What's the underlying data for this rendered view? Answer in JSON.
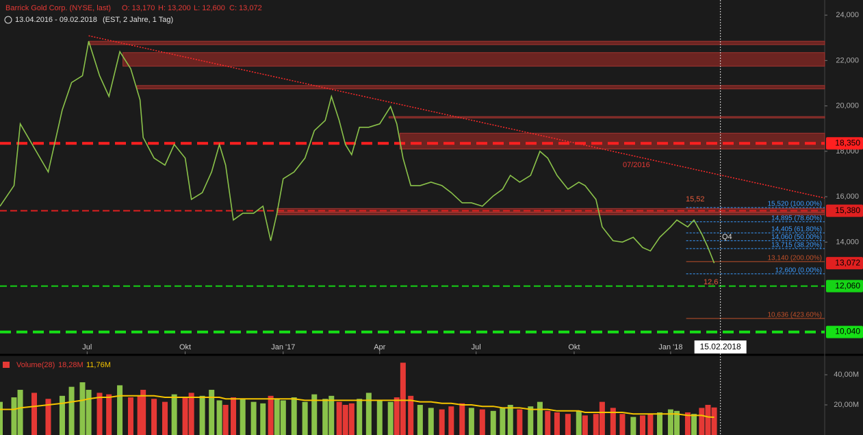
{
  "chart_data": {
    "type": "line",
    "title": "Barrick Gold Corp. (NYSE, last)",
    "ohlc": [
      {
        "value": 13170,
        "label": "O: 13,170"
      },
      {
        "value": 13200,
        "label": "H: 13,200"
      },
      {
        "value": 12600,
        "label": "L: 12,600"
      },
      {
        "value": 13072,
        "label": "C: 13,072"
      }
    ],
    "subtitle": "13.04.2016 - 09.02.2018",
    "subtitle_note": "(EST, 2 Jahre, 1 Tag)",
    "x": [
      0,
      9,
      13,
      22,
      31,
      40,
      46,
      53,
      57,
      64,
      70,
      77,
      84,
      90,
      92,
      99,
      106,
      112,
      119,
      123,
      130,
      136,
      141,
      145,
      150,
      156,
      163,
      169,
      174,
      178,
      182,
      189,
      196,
      202,
      209,
      213,
      218,
      222,
      226,
      231,
      237,
      244,
      251,
      255,
      259,
      264,
      270,
      277,
      284,
      290,
      297,
      303,
      310,
      317,
      323,
      328,
      334,
      341,
      347,
      352,
      358,
      365,
      372,
      376,
      383,
      387,
      394,
      400,
      407,
      413,
      418,
      424,
      431,
      435,
      442,
      446,
      451,
      455,
      459
    ],
    "series": [
      {
        "name": "Barrick Gold Corp.",
        "color": "#8bc34a",
        "values": [
          15580,
          16490,
          19210,
          18150,
          17090,
          19820,
          21030,
          21330,
          22850,
          21330,
          20420,
          22390,
          21640,
          20270,
          18610,
          17700,
          17390,
          18300,
          17700,
          15880,
          16180,
          17090,
          18300,
          17390,
          14970,
          15270,
          15270,
          15580,
          14060,
          15270,
          16790,
          17090,
          17700,
          18910,
          19360,
          20420,
          19360,
          18300,
          17850,
          19060,
          19060,
          19210,
          19970,
          19210,
          17700,
          16490,
          16490,
          16640,
          16490,
          16180,
          15730,
          15730,
          15580,
          16030,
          16330,
          16940,
          16640,
          16940,
          18000,
          17700,
          16940,
          16330,
          16640,
          16490,
          15880,
          14670,
          14060,
          14000,
          14210,
          13760,
          13610,
          14210,
          14670,
          14970,
          14670,
          14970,
          14360,
          13760,
          13072
        ]
      }
    ],
    "xlim": [
      0,
      530
    ],
    "xticks": [
      {
        "value": 56,
        "label": "Jul"
      },
      {
        "value": 119,
        "label": "Okt"
      },
      {
        "value": 182,
        "label": "Jan '17"
      },
      {
        "value": 244,
        "label": "Apr"
      },
      {
        "value": 306,
        "label": "Jul"
      },
      {
        "value": 369,
        "label": "Okt"
      },
      {
        "value": 431,
        "label": "Jan '18"
      }
    ],
    "ylim": [
      9061,
      24667
    ],
    "yticks": [
      {
        "value": 14000,
        "label": "14,000"
      },
      {
        "value": 16000,
        "label": "16,000"
      },
      {
        "value": 18000,
        "label": "18,000"
      },
      {
        "value": 20000,
        "label": "20,000"
      },
      {
        "value": 22000,
        "label": "22,000"
      },
      {
        "value": 24000,
        "label": "24,000"
      }
    ],
    "cursor": {
      "value": 463,
      "label": "15.02.2018"
    },
    "levels": [
      {
        "value": 18350,
        "label": "18,350",
        "color": "#ff2020"
      },
      {
        "value": 15380,
        "label": "15,380",
        "color": "#e02020"
      },
      {
        "value": 13072,
        "label": "13,072",
        "color": "#e02020"
      },
      {
        "value": 12060,
        "label": "12,060",
        "color": "#16d416"
      },
      {
        "value": 10040,
        "label": "10,040",
        "color": "#16e016"
      }
    ],
    "zones": [
      {
        "low": 22700,
        "high": 22850,
        "start": 57
      },
      {
        "low": 21750,
        "high": 22350,
        "start": 79
      },
      {
        "low": 20750,
        "high": 20900,
        "start": 88
      },
      {
        "low": 19480,
        "high": 19530,
        "start": 250
      },
      {
        "low": 18100,
        "high": 18800,
        "start": 257
      },
      {
        "low": 15320,
        "high": 15480,
        "start": 178
      },
      {
        "low": 15200,
        "high": 15300,
        "start": 178
      }
    ],
    "trendline": {
      "start": [
        57,
        23090
      ],
      "end": [
        530,
        15940
      ],
      "label": "07/2016"
    },
    "fib": [
      {
        "value": 15520,
        "label": "15,520 (100.00%)",
        "color": "#3b9bff"
      },
      {
        "value": 14895,
        "label": "14,895 (78.60%)",
        "color": "#3b9bff"
      },
      {
        "value": 14405,
        "label": "14,405 (61.80%)",
        "color": "#3b9bff"
      },
      {
        "value": 14060,
        "label": "14,060 (50.00%)",
        "color": "#3b9bff"
      },
      {
        "value": 13715,
        "label": "13,715 (38.20%)",
        "color": "#3b9bff"
      },
      {
        "value": 13140,
        "label": "13,140 (200.00%)",
        "color": "#c0502a"
      },
      {
        "value": 12600,
        "label": "12,600 (0.00%)",
        "color": "#3b9bff"
      },
      {
        "value": 10636,
        "label": "10,636 (423.60%)",
        "color": "#c0502a"
      }
    ],
    "fib_start": 441,
    "annotations": [
      "15,52",
      "12,6",
      "Q4"
    ],
    "volume": {
      "title": "Volume(28)",
      "last": 18.28,
      "last_label": "18,28M",
      "avg_last": 11.76,
      "avg_label": "11,76M",
      "up_color": "#8bc34a",
      "down_color": "#e53935",
      "avg_color": "#f5c400",
      "values": [
        22,
        25,
        30,
        28,
        24,
        26,
        32,
        35,
        30,
        28,
        27,
        33,
        25,
        26,
        30,
        24,
        22,
        27,
        25,
        28,
        26,
        30,
        23,
        20,
        25,
        24,
        22,
        21,
        26,
        24,
        23,
        25,
        22,
        27,
        24,
        26,
        22,
        20,
        21,
        24,
        28,
        23,
        22,
        25,
        48,
        26,
        20,
        18,
        17,
        19,
        21,
        18,
        17,
        16,
        18,
        20,
        17,
        19,
        22,
        16,
        15,
        14,
        16,
        13,
        14,
        22,
        18,
        14,
        12,
        13,
        14,
        15,
        17,
        16,
        15,
        14,
        18,
        20,
        18.28
      ],
      "avg": [
        17,
        17,
        18,
        19,
        20,
        21,
        22,
        23,
        24,
        25,
        25,
        26,
        26,
        26,
        26,
        26,
        25,
        25,
        25,
        25,
        25,
        25,
        25,
        24,
        24,
        24,
        24,
        24,
        24,
        24,
        24,
        24,
        23,
        23,
        23,
        23,
        23,
        23,
        23,
        23,
        23,
        23,
        23,
        23,
        23,
        23,
        22,
        22,
        21,
        21,
        20,
        20,
        19,
        19,
        18,
        18,
        18,
        17,
        17,
        17,
        16,
        16,
        16,
        15,
        15,
        15,
        15,
        15,
        14,
        14,
        14,
        14,
        14,
        14,
        13,
        13,
        13,
        12,
        11.76
      ],
      "ylim": [
        0,
        52.3
      ],
      "yticks": [
        {
          "value": 20,
          "label": "20,00M"
        },
        {
          "value": 40,
          "label": "40,00M"
        }
      ]
    }
  }
}
